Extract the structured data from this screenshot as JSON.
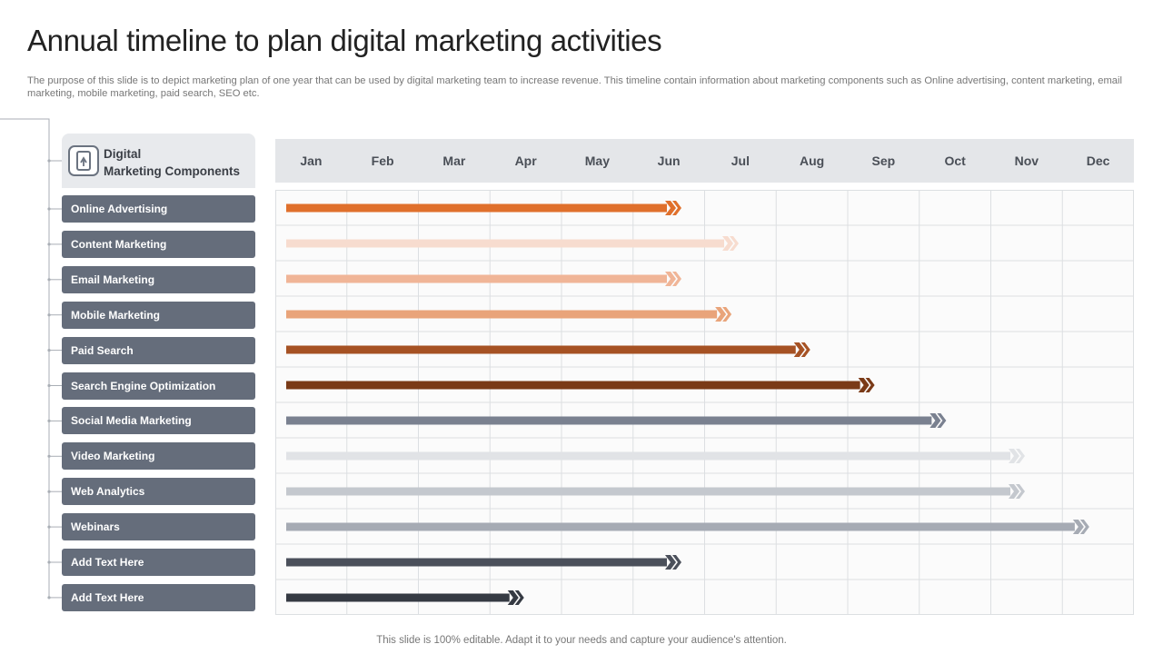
{
  "title": "Annual timeline to plan digital marketing activities",
  "description": "The purpose of this slide is to depict marketing plan of one year that can be used by digital marketing team to increase revenue. This timeline contain information about marketing components such as Online advertising, content marketing, email marketing, mobile marketing, paid search, SEO etc.",
  "footer": "This slide is 100% editable. Adapt it to your needs and capture your audience's attention.",
  "header": {
    "line1": "Digital",
    "line2": "Marketing Components",
    "icon": "mobile-marketing-icon"
  },
  "chart_data": {
    "type": "bar",
    "categories": [
      "Online Advertising",
      "Content Marketing",
      "Email Marketing",
      "Mobile Marketing",
      "Paid Search",
      "Search Engine Optimization",
      "Social Media Marketing",
      "Video Marketing",
      "Web Analytics",
      "Webinars",
      "Add Text Here",
      "Add Text Here"
    ],
    "x": [
      "Jan",
      "Feb",
      "Mar",
      "Apr",
      "May",
      "Jun",
      "Jul",
      "Aug",
      "Sep",
      "Oct",
      "Nov",
      "Dec"
    ],
    "series": [
      {
        "start": [
          0,
          0,
          0,
          0,
          0,
          0,
          0,
          0,
          0,
          0,
          0,
          0
        ],
        "end": [
          5.6,
          6.4,
          5.6,
          6.3,
          7.4,
          8.3,
          9.3,
          10.4,
          10.4,
          11.3,
          5.6,
          3.4
        ],
        "colors": [
          "#e0702c",
          "#f7dccf",
          "#f0b597",
          "#e9a47a",
          "#a65224",
          "#7a3a17",
          "#7a8190",
          "#e1e3e6",
          "#c4c8ce",
          "#a6abb4",
          "#4b505b",
          "#353a43"
        ]
      }
    ],
    "xlim": [
      0,
      12
    ]
  }
}
